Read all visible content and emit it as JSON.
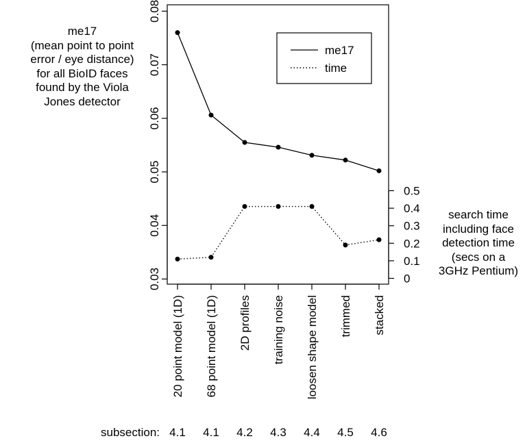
{
  "left_annotation": [
    "me17",
    "(mean point to point",
    "error / eye distance)",
    "for all BioID faces",
    "found by the Viola",
    "Jones detector"
  ],
  "right_annotation": [
    "search time",
    "including face",
    "detection time",
    "(secs on a",
    "3GHz Pentium)"
  ],
  "subsection_label": "subsection:",
  "subsections": [
    "4.1",
    "4.1",
    "4.2",
    "4.3",
    "4.4",
    "4.5",
    "4.6"
  ],
  "chart_data": {
    "type": "line",
    "categories": [
      "20 point model (1D)",
      "68 point model (1D)",
      "2D profiles",
      "training noise",
      "loosen shape model",
      "trimmed",
      "stacked"
    ],
    "series": [
      {
        "name": "me17",
        "axis": "left",
        "line_style": "solid",
        "values": [
          0.076,
          0.0606,
          0.0555,
          0.0546,
          0.0531,
          0.0522,
          0.0502
        ]
      },
      {
        "name": "time",
        "axis": "right",
        "line_style": "dotted",
        "values": [
          0.11,
          0.12,
          0.41,
          0.41,
          0.41,
          0.19,
          0.22
        ]
      }
    ],
    "left_axis": {
      "ylim": [
        0.03,
        0.08
      ],
      "ticks": [
        0.03,
        0.04,
        0.05,
        0.06,
        0.07,
        0.08
      ],
      "tick_labels": [
        "0.03",
        "0.04",
        "0.05",
        "0.06",
        "0.07",
        "0.08"
      ]
    },
    "right_axis": {
      "ylim": [
        0,
        0.5
      ],
      "ticks": [
        0,
        0.1,
        0.2,
        0.3,
        0.4,
        0.5
      ],
      "tick_labels": [
        "0",
        "0.1",
        "0.2",
        "0.3",
        "0.4",
        "0.5"
      ]
    },
    "legend": {
      "position": "top-right",
      "entries": [
        "me17",
        "time"
      ]
    },
    "grid": false
  }
}
